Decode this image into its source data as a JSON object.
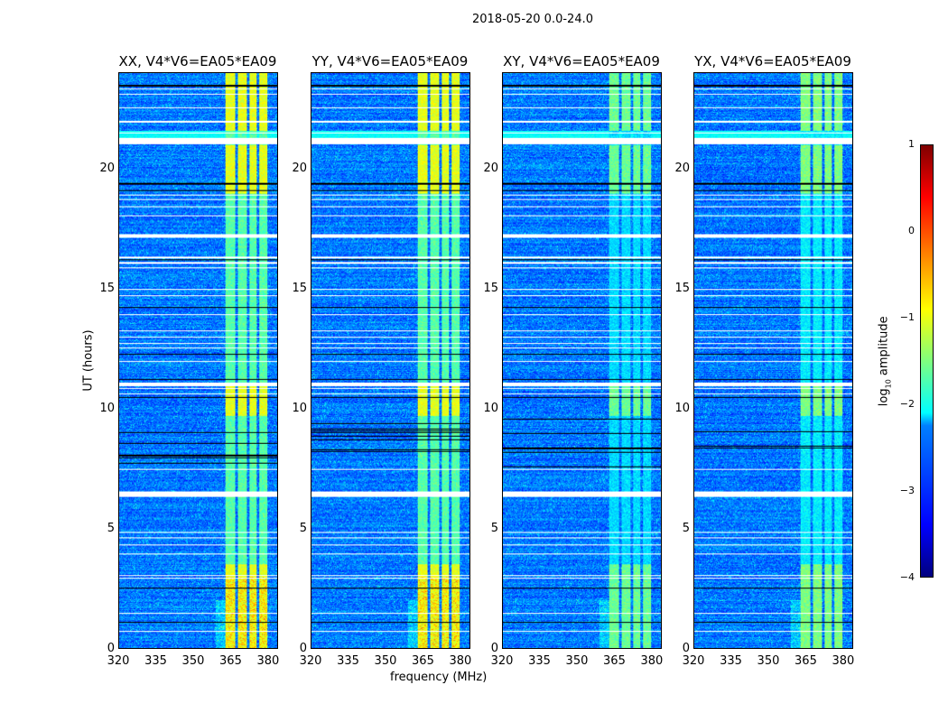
{
  "suptitle": "2018-05-20 0.0-24.0",
  "chart_data": {
    "type": "heatmap",
    "title": "2018-05-20 0.0-24.0",
    "xlabel": "frequency (MHz)",
    "ylabel": "UT (hours)",
    "xlim": [
      320,
      384
    ],
    "ylim": [
      0,
      24
    ],
    "xticks": [
      "320",
      "335",
      "350",
      "365",
      "380"
    ],
    "yticks": [
      "0",
      "5",
      "10",
      "15",
      "20"
    ],
    "panels": [
      {
        "title": "XX, V4*V6=EA05*EA09",
        "rfi_level": -1.0
      },
      {
        "title": "YY, V4*V6=EA05*EA09",
        "rfi_level": -1.0
      },
      {
        "title": "XY, V4*V6=EA05*EA09",
        "rfi_level": -1.6
      },
      {
        "title": "YX, V4*V6=EA05*EA09",
        "rfi_level": -1.5
      }
    ],
    "background_level": -2.8,
    "rfi_channels_mhz": [
      [
        363,
        367
      ],
      [
        368,
        371.5
      ],
      [
        372.5,
        375.5
      ],
      [
        376.5,
        380
      ]
    ],
    "rfi_strong_hours": [
      [
        0,
        3.5
      ],
      [
        9.7,
        11
      ],
      [
        19,
        21
      ],
      [
        21.6,
        24
      ]
    ],
    "bright_row_hours": [
      21.3,
      21.6
    ],
    "flagged_white_hours": [
      0.71,
      1.46,
      2.93,
      3.04,
      3.94,
      4.32,
      4.62,
      4.84,
      6.35,
      6.53,
      7.47,
      10.63,
      10.85,
      11.04,
      11.98,
      12.54,
      12.73,
      12.99,
      13.26,
      13.93,
      14.72,
      14.98,
      15.88,
      16.1,
      16.33,
      17.24,
      18.06,
      18.44,
      18.74,
      18.93,
      21.52,
      22.0,
      22.57,
      23.13,
      23.36
    ],
    "flagged_white_bands": [
      [
        21.05,
        21.3
      ],
      [
        6.35,
        6.55
      ],
      [
        17.15,
        17.3
      ],
      [
        10.95,
        11.1
      ]
    ],
    "flagged_black_hours": [
      1.09,
      2.52,
      10.48,
      11.23,
      12.28,
      14.23,
      16.22,
      19.11,
      19.41,
      23.5
    ],
    "dark_band_hours": [
      7.3,
      9.6
    ],
    "colorbar": {
      "label": "log10 amplitude",
      "range": [
        -4,
        1
      ],
      "ticks": [
        "1",
        "0",
        "−1",
        "−2",
        "−3",
        "−4"
      ],
      "colormap": "jet"
    }
  }
}
